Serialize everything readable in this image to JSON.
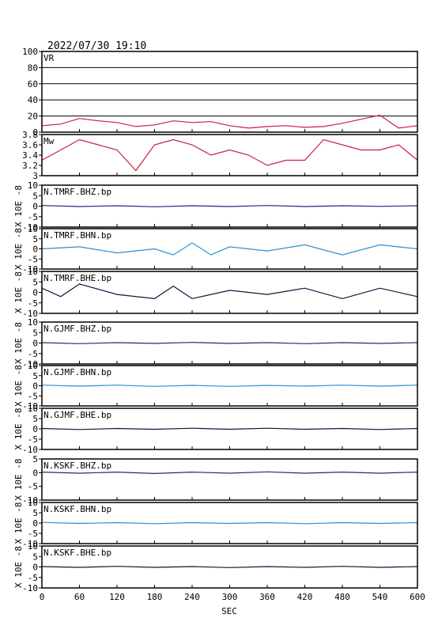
{
  "header": {
    "datetime": "2022/07/30  19:10"
  },
  "chart_data": {
    "type": "line",
    "xlabel": "SEC",
    "xlim": [
      0,
      600
    ],
    "xticks": [
      0,
      60,
      120,
      180,
      240,
      300,
      360,
      420,
      480,
      540,
      600
    ],
    "colors": {
      "vr": "#cc1f3f",
      "mw": "#cc1f3f",
      "bhz": "#1c2a8a",
      "bhn": "#2b8fd6",
      "bhe": "#0a1a3a"
    },
    "panels": [
      {
        "id": "vr",
        "label": "VR",
        "ylim": [
          0,
          100
        ],
        "yticks": [
          0,
          20,
          40,
          60,
          80,
          100
        ],
        "grid": true,
        "x": [
          0,
          30,
          60,
          90,
          120,
          150,
          180,
          210,
          240,
          270,
          300,
          330,
          360,
          390,
          420,
          450,
          480,
          510,
          540,
          570,
          600
        ],
        "y": [
          8,
          10,
          17,
          14,
          12,
          7,
          9,
          14,
          12,
          13,
          8,
          5,
          7,
          8,
          6,
          7,
          11,
          16,
          21,
          5,
          8
        ]
      },
      {
        "id": "mw",
        "label": "Mw",
        "ylim": [
          3.0,
          3.8
        ],
        "yticks": [
          3.0,
          3.2,
          3.4,
          3.6,
          3.8
        ],
        "grid": false,
        "x": [
          0,
          30,
          60,
          90,
          120,
          150,
          180,
          210,
          240,
          270,
          300,
          330,
          360,
          390,
          420,
          450,
          480,
          510,
          540,
          570,
          600
        ],
        "y": [
          3.3,
          3.5,
          3.7,
          3.6,
          3.5,
          3.1,
          3.6,
          3.7,
          3.6,
          3.4,
          3.5,
          3.4,
          3.2,
          3.3,
          3.3,
          3.7,
          3.6,
          3.5,
          3.5,
          3.6,
          3.3
        ]
      },
      {
        "id": "p3",
        "label": "N.TMRF.BHZ.bp",
        "ylim": [
          -10,
          10
        ],
        "yticks": [
          -10,
          -5,
          0,
          5,
          10
        ],
        "ylabel": "X 10E -8",
        "comp": "bhz",
        "x": [
          0,
          60,
          120,
          180,
          240,
          300,
          360,
          420,
          480,
          540,
          600
        ],
        "y": [
          0.3,
          -0.2,
          0.2,
          -0.3,
          0.2,
          -0.2,
          0.3,
          -0.2,
          0.2,
          -0.1,
          0.2
        ]
      },
      {
        "id": "p4",
        "label": "N.TMRF.BHN.bp",
        "ylim": [
          -10,
          10
        ],
        "yticks": [
          -10,
          -5,
          0,
          5,
          10
        ],
        "ylabel": "X 10E -8",
        "comp": "bhn",
        "x": [
          0,
          60,
          120,
          180,
          210,
          240,
          270,
          300,
          360,
          420,
          480,
          540,
          600
        ],
        "y": [
          0,
          1,
          -2,
          0,
          -3,
          3,
          -3,
          1,
          -1,
          2,
          -3,
          2,
          0
        ]
      },
      {
        "id": "p5",
        "label": "N.TMRF.BHE.bp",
        "ylim": [
          -10,
          10
        ],
        "yticks": [
          -10,
          -5,
          0,
          5,
          10
        ],
        "ylabel": "X 10E -8",
        "comp": "bhe",
        "x": [
          0,
          30,
          60,
          120,
          180,
          210,
          240,
          300,
          360,
          420,
          480,
          540,
          600
        ],
        "y": [
          2,
          -2,
          4,
          -1,
          -3,
          3,
          -3,
          1,
          -1,
          2,
          -3,
          2,
          -2
        ]
      },
      {
        "id": "p6",
        "label": "N.GJMF.BHZ.bp",
        "ylim": [
          -10,
          10
        ],
        "yticks": [
          -10,
          -5,
          0,
          5,
          10
        ],
        "ylabel": "X 10E -8",
        "comp": "bhz",
        "x": [
          0,
          60,
          120,
          180,
          240,
          300,
          360,
          420,
          480,
          540,
          600
        ],
        "y": [
          0.2,
          -0.3,
          0.2,
          -0.2,
          0.3,
          -0.2,
          0.2,
          -0.3,
          0.2,
          -0.2,
          0.2
        ]
      },
      {
        "id": "p7",
        "label": "N.GJMF.BHN.bp",
        "ylim": [
          -10,
          10
        ],
        "yticks": [
          -10,
          -5,
          0,
          5,
          10
        ],
        "ylabel": "X 10E -8",
        "comp": "bhn",
        "x": [
          0,
          60,
          120,
          180,
          240,
          300,
          360,
          420,
          480,
          540,
          600
        ],
        "y": [
          0.3,
          -0.2,
          0.3,
          -0.3,
          0.2,
          -0.3,
          0.2,
          -0.2,
          0.3,
          -0.2,
          0.3
        ]
      },
      {
        "id": "p8",
        "label": "N.GJMF.BHE.bp",
        "ylim": [
          -10,
          10
        ],
        "yticks": [
          -10,
          -5,
          0,
          5,
          10
        ],
        "ylabel": "X 10E -8",
        "comp": "bhe",
        "x": [
          0,
          60,
          120,
          180,
          240,
          300,
          360,
          420,
          480,
          540,
          600
        ],
        "y": [
          0.2,
          -0.3,
          0.2,
          -0.2,
          0.3,
          -0.2,
          0.3,
          -0.2,
          0.2,
          -0.3,
          0.2
        ]
      },
      {
        "id": "p9",
        "label": "N.KSKF.BHZ.bp",
        "ylim": [
          -10,
          5
        ],
        "yticks": [
          -10,
          -5,
          0,
          5
        ],
        "ylabel": "X 10E -8",
        "comp": "bhz",
        "x": [
          0,
          60,
          120,
          180,
          240,
          300,
          360,
          420,
          480,
          540,
          600
        ],
        "y": [
          0.2,
          -0.2,
          0.2,
          -0.3,
          0.2,
          -0.2,
          0.3,
          -0.2,
          0.2,
          -0.2,
          0.2
        ]
      },
      {
        "id": "p10",
        "label": "N.KSKF.BHN.bp",
        "ylim": [
          -10,
          10
        ],
        "yticks": [
          -10,
          -5,
          0,
          5,
          10
        ],
        "ylabel": "X 10E -8",
        "comp": "bhn",
        "x": [
          0,
          60,
          120,
          180,
          240,
          300,
          360,
          420,
          480,
          540,
          600
        ],
        "y": [
          0.3,
          -0.2,
          0.2,
          -0.3,
          0.2,
          -0.2,
          0.2,
          -0.3,
          0.2,
          -0.2,
          0.2
        ]
      },
      {
        "id": "p11",
        "label": "N.KSKF.BHE.bp",
        "ylim": [
          -10,
          10
        ],
        "yticks": [
          -10,
          -5,
          0,
          5,
          10
        ],
        "ylabel": "X 10E -8",
        "comp": "bhe",
        "x": [
          0,
          60,
          120,
          180,
          240,
          300,
          360,
          420,
          480,
          540,
          600
        ],
        "y": [
          0.2,
          -0.2,
          0.3,
          -0.2,
          0.2,
          -0.3,
          0.2,
          -0.2,
          0.3,
          -0.2,
          0.2
        ]
      }
    ]
  }
}
